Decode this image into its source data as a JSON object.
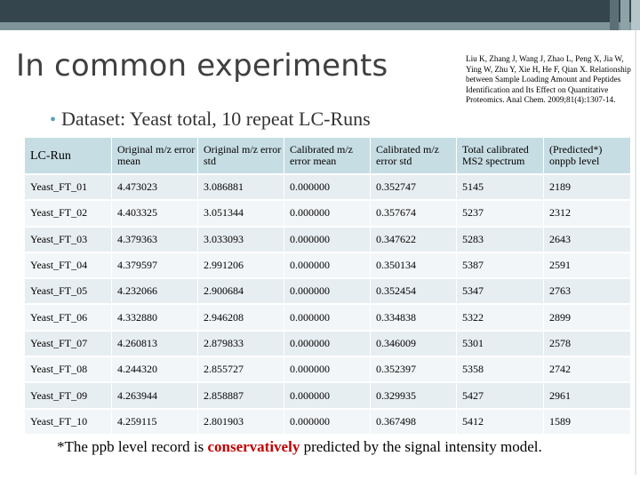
{
  "slide": {
    "title": "In common experiments",
    "bullet": "Dataset: Yeast total, 10 repeat LC-Runs",
    "citation": "Liu K, Zhang J, Wang J, Zhao L, Peng X, Jia W, Ying W, Zhu Y, Xie H, He F, Qian X. Relationship between Sample Loading Amount and Peptides Identification and Its Effect on Quantitative Proteomics. Anal Chem. 2009;81(4):1307-14.",
    "footnote": {
      "before": "*The ppb level record is ",
      "emphasis": "conservatively",
      "after": " predicted by the signal intensity model."
    },
    "colors": {
      "header_fill": "#c7dde4",
      "row_fill_odd": "#e7eef1",
      "row_fill_even": "#f3f6f8",
      "emphasis": "#c00000",
      "bullet": "#5ba0b7"
    }
  },
  "table": {
    "headers": [
      "LC-Run",
      "Original m/z error mean",
      "Original m/z error std",
      "Calibrated m/z error mean",
      "Calibrated m/z error std",
      "Total calibrated MS2 spectrum",
      "(Predicted*) onppb level"
    ],
    "rows": [
      [
        "Yeast_FT_01",
        "4.473023",
        "3.086881",
        "0.000000",
        "0.352747",
        "5145",
        "2189"
      ],
      [
        "Yeast_FT_02",
        "4.403325",
        "3.051344",
        "0.000000",
        "0.357674",
        "5237",
        "2312"
      ],
      [
        "Yeast_FT_03",
        "4.379363",
        "3.033093",
        "0.000000",
        "0.347622",
        "5283",
        "2643"
      ],
      [
        "Yeast_FT_04",
        "4.379597",
        "2.991206",
        "0.000000",
        "0.350134",
        "5387",
        "2591"
      ],
      [
        "Yeast_FT_05",
        "4.232066",
        "2.900684",
        "0.000000",
        "0.352454",
        "5347",
        "2763"
      ],
      [
        "Yeast_FT_06",
        "4.332880",
        "2.946208",
        "0.000000",
        "0.334838",
        "5322",
        "2899"
      ],
      [
        "Yeast_FT_07",
        "4.260813",
        "2.879833",
        "0.000000",
        "0.346009",
        "5301",
        "2578"
      ],
      [
        "Yeast_FT_08",
        "4.244320",
        "2.855727",
        "0.000000",
        "0.352397",
        "5358",
        "2742"
      ],
      [
        "Yeast_FT_09",
        "4.263944",
        "2.858887",
        "0.000000",
        "0.329935",
        "5427",
        "2961"
      ],
      [
        "Yeast_FT_10",
        "4.259115",
        "2.801903",
        "0.000000",
        "0.367498",
        "5412",
        "1589"
      ]
    ]
  }
}
